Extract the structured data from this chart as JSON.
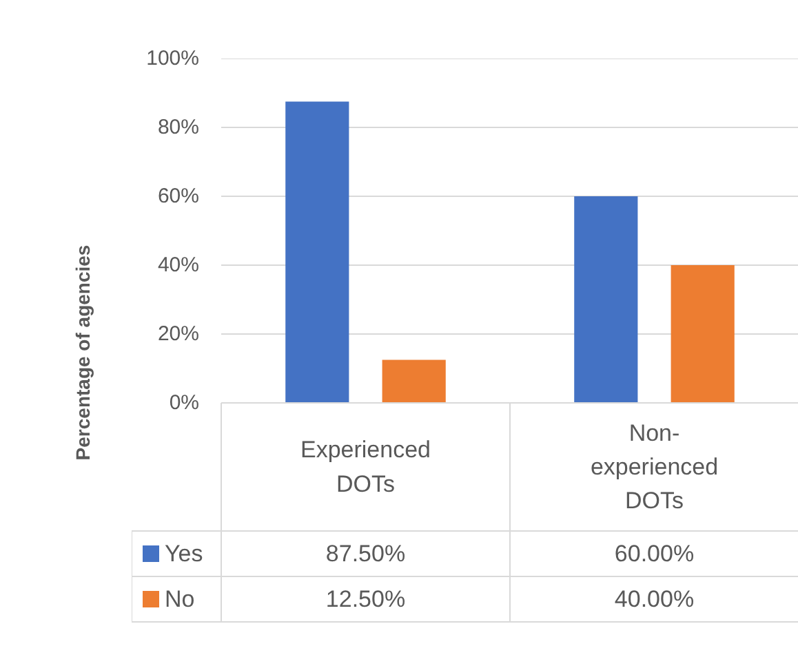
{
  "chart_data": {
    "type": "bar",
    "ylabel": "Percentage of agencies",
    "categories": [
      "Experienced DOTs",
      "Non-experienced DOTs"
    ],
    "series": [
      {
        "name": "Yes",
        "color": "#4472c4",
        "values": [
          87.5,
          60
        ],
        "value_labels": [
          "87.50%",
          "60.00%"
        ]
      },
      {
        "name": "No",
        "color": "#ed7d31",
        "values": [
          12.5,
          40
        ],
        "value_labels": [
          "12.50%",
          "40.00%"
        ]
      }
    ],
    "ylim": [
      0,
      100
    ],
    "yticks": [
      {
        "value": 0,
        "label": "0%"
      },
      {
        "value": 20,
        "label": "20%"
      },
      {
        "value": 40,
        "label": "40%"
      },
      {
        "value": 60,
        "label": "60%"
      },
      {
        "value": 80,
        "label": "80%"
      },
      {
        "value": 100,
        "label": "100%"
      }
    ],
    "grid": "y",
    "legend": "bottom"
  }
}
